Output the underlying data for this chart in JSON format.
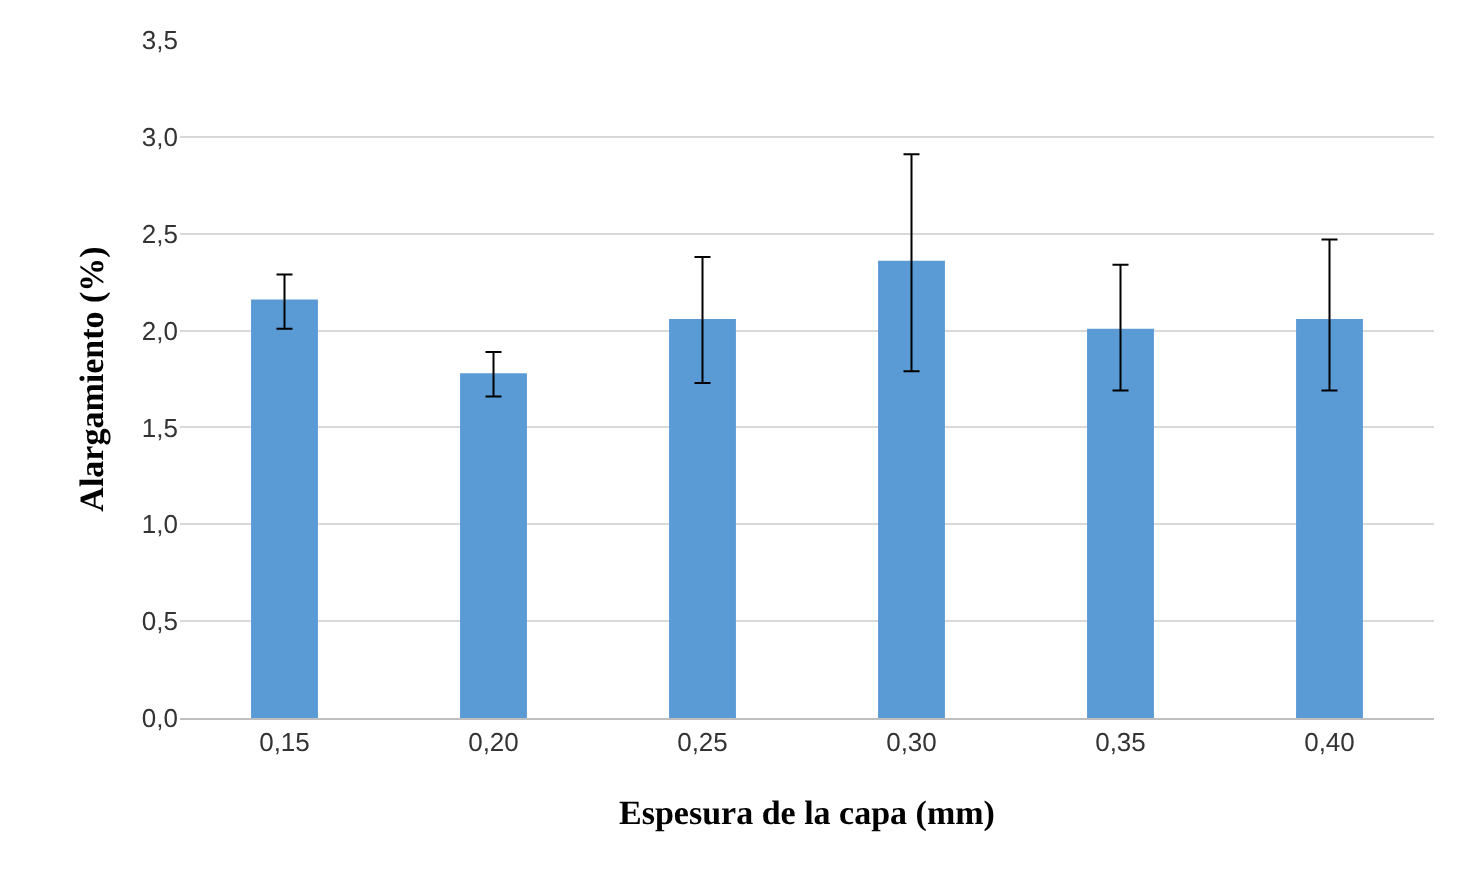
{
  "chart_data": {
    "type": "bar",
    "xlabel": "Espesura de la capa (mm)",
    "ylabel": "Alargamiento (%)",
    "categories": [
      "0,15",
      "0,20",
      "0,25",
      "0,30",
      "0,35",
      "0,40"
    ],
    "values": [
      2.16,
      1.78,
      2.06,
      2.36,
      2.01,
      2.06
    ],
    "errors": [
      [
        2.01,
        2.29
      ],
      [
        1.66,
        1.89
      ],
      [
        1.73,
        2.38
      ],
      [
        1.79,
        2.91
      ],
      [
        1.69,
        2.34
      ],
      [
        1.69,
        2.47
      ]
    ],
    "color": "#5b9bd5",
    "ylim": [
      0,
      3.5
    ],
    "yticks": [
      {
        "value": 0,
        "label": "0,0"
      },
      {
        "value": 0.5,
        "label": "0,5"
      },
      {
        "value": 1,
        "label": "1,0"
      },
      {
        "value": 1.5,
        "label": "1,5"
      },
      {
        "value": 2,
        "label": "2,0"
      },
      {
        "value": 2.5,
        "label": "2,5"
      },
      {
        "value": 3,
        "label": "3,0"
      },
      {
        "value": 3.5,
        "label": "3,5"
      }
    ],
    "grid": "y"
  }
}
